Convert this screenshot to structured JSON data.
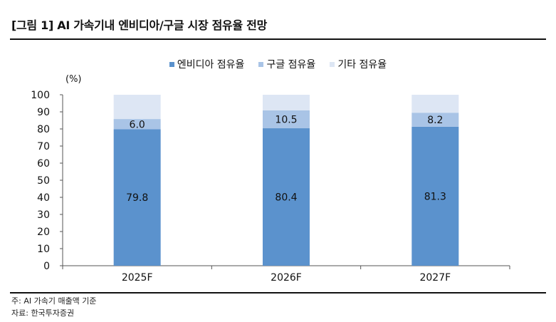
{
  "title": "[그림 1] AI 가속기내 엔비디아/구글 시장 점유율 전망",
  "unit_label": "(%)",
  "notes": {
    "basis": "주: AI 가속기 매출액 기준",
    "source": "자료: 한국투자증권"
  },
  "colors": {
    "nvidia": "#5B92CD",
    "google": "#A9C4E6",
    "other": "#DDE6F4"
  },
  "chart_data": {
    "type": "bar",
    "stacked": true,
    "title": "[그림 1] AI 가속기내 엔비디아/구글 시장 점유율 전망",
    "categories": [
      "2025F",
      "2026F",
      "2027F"
    ],
    "series": [
      {
        "name": "엔비디아 점유율",
        "values": [
          79.8,
          80.4,
          81.3
        ],
        "labels": [
          "79.8",
          "80.4",
          "81.3"
        ]
      },
      {
        "name": "구글 점유율",
        "values": [
          6.0,
          10.5,
          8.2
        ],
        "labels": [
          "6.0",
          "10.5",
          "8.2"
        ]
      },
      {
        "name": "기타 점유율",
        "values": [
          14.2,
          9.1,
          10.5
        ],
        "labels": []
      }
    ],
    "ylim": [
      0,
      100
    ],
    "yticks": [
      "0",
      "10",
      "20",
      "30",
      "40",
      "50",
      "60",
      "70",
      "80",
      "90",
      "100"
    ],
    "ylabel": "(%)",
    "xlabel": "",
    "legend_position": "top"
  }
}
